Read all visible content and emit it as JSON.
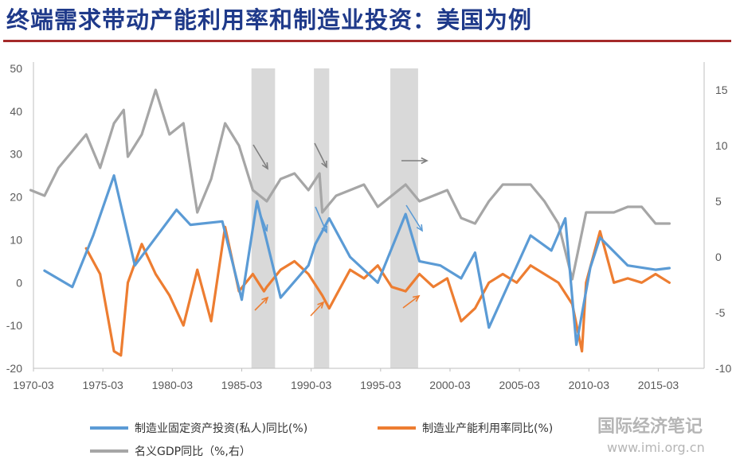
{
  "header": {
    "title": "终端需求带动产能利用率和制造业投资：美国为例"
  },
  "watermark": {
    "line1": "国际经济笔记",
    "line2": "www.imi.org.cn"
  },
  "colors": {
    "title": "#1f3a8a",
    "rule": "#a52a2a",
    "investment": "#5b9bd5",
    "capacity": "#ed7d31",
    "gdp": "#a6a6a6",
    "recession": "#d9d9d9"
  },
  "chart_data": {
    "type": "line",
    "x_ticks": [
      "1970-03",
      "1975-03",
      "1980-03",
      "1985-03",
      "1990-03",
      "1995-03",
      "2000-03",
      "2005-03",
      "2010-03",
      "2015-03"
    ],
    "left_axis": {
      "ticks": [
        "50",
        "40",
        "30",
        "20",
        "10",
        "0",
        "-10",
        "-20"
      ],
      "ylim": [
        -20,
        50
      ]
    },
    "right_axis": {
      "ticks": [
        "15",
        "10",
        "5",
        "0",
        "-5",
        "-10"
      ],
      "ylim": [
        -10,
        16
      ]
    },
    "shaded_periods": [
      [
        1985.9,
        1987.6
      ],
      [
        1990.4,
        1991.5
      ],
      [
        1995.9,
        1997.9
      ]
    ],
    "series": [
      {
        "name": "制造业固定资产投资(私人)同比(%)",
        "axis": "left",
        "color": "#5b9bd5",
        "x": [
          1971,
          1973,
          1974.5,
          1976,
          1977.5,
          1980.5,
          1981.5,
          1983.8,
          1985.2,
          1986.3,
          1988,
          1990,
          1990.5,
          1991.5,
          1993,
          1995,
          1997,
          1998,
          1999.5,
          2001,
          2002,
          2003,
          2006,
          2007.5,
          2008.5,
          2009.3,
          2010.3,
          2011,
          2013,
          2015,
          2016
        ],
        "y": [
          2.8,
          -1,
          11,
          25,
          4,
          17,
          13.5,
          14.3,
          -4,
          19,
          -3.5,
          4,
          9,
          15,
          6,
          0,
          16,
          5,
          4,
          1,
          7,
          -10.5,
          11,
          7.5,
          15,
          -14.5,
          3.5,
          10.5,
          4,
          3,
          3.4
        ]
      },
      {
        "name": "制造业产能利用率同比(%)",
        "axis": "left",
        "color": "#ed7d31",
        "x": [
          1974,
          1975,
          1976,
          1976.5,
          1977,
          1978,
          1979,
          1980,
          1981,
          1982,
          1983,
          1984,
          1985,
          1986,
          1986.8,
          1987,
          1988,
          1989,
          1990,
          1991,
          1991.5,
          1992,
          1993,
          1994,
          1995,
          1996,
          1997,
          1998,
          1999,
          2000,
          2001,
          2002,
          2003,
          2004,
          2005,
          2006,
          2007,
          2008,
          2009,
          2009.7,
          2010,
          2011,
          2012,
          2013,
          2014,
          2015,
          2016
        ],
        "y": [
          8,
          2,
          -16,
          -17,
          0,
          9,
          2,
          -3,
          -10,
          3,
          -9,
          13,
          -2,
          2,
          -2,
          -1,
          3,
          5,
          2,
          -3,
          -6,
          -3,
          3,
          1,
          4,
          -1,
          -2,
          2,
          -1,
          1,
          -9,
          -6,
          0,
          2,
          0,
          4,
          2,
          0,
          -5,
          -16,
          0,
          12,
          0,
          1,
          0,
          2,
          0
        ]
      },
      {
        "name": "名义GDP同比（%,右）",
        "axis": "right",
        "color": "#a6a6a6",
        "x": [
          1970,
          1971,
          1972,
          1973,
          1974,
          1975,
          1976,
          1976.7,
          1977,
          1978,
          1979,
          1980,
          1981,
          1982,
          1983,
          1984,
          1985,
          1986,
          1987,
          1988,
          1989,
          1990,
          1990.8,
          1991,
          1992,
          1993,
          1994,
          1995,
          1996,
          1997,
          1998,
          1999,
          2000,
          2001,
          2002,
          2003,
          2004,
          2005,
          2006,
          2007,
          2008,
          2009,
          2010,
          2011,
          2012,
          2013,
          2014,
          2015,
          2016
        ],
        "y": [
          6,
          5.5,
          8,
          9.5,
          11,
          8,
          12,
          13.2,
          9,
          11,
          15,
          11,
          12,
          4,
          7,
          12,
          10,
          6,
          5,
          7,
          7.5,
          6,
          7.5,
          4,
          5.5,
          6,
          6.5,
          4.5,
          5.5,
          6.5,
          5,
          5.5,
          6,
          3.5,
          3,
          5,
          6.5,
          6.5,
          6.5,
          5,
          3,
          -2,
          4,
          4,
          4,
          4.5,
          4.5,
          3,
          3
        ]
      }
    ],
    "legend_placement": "bottom"
  }
}
